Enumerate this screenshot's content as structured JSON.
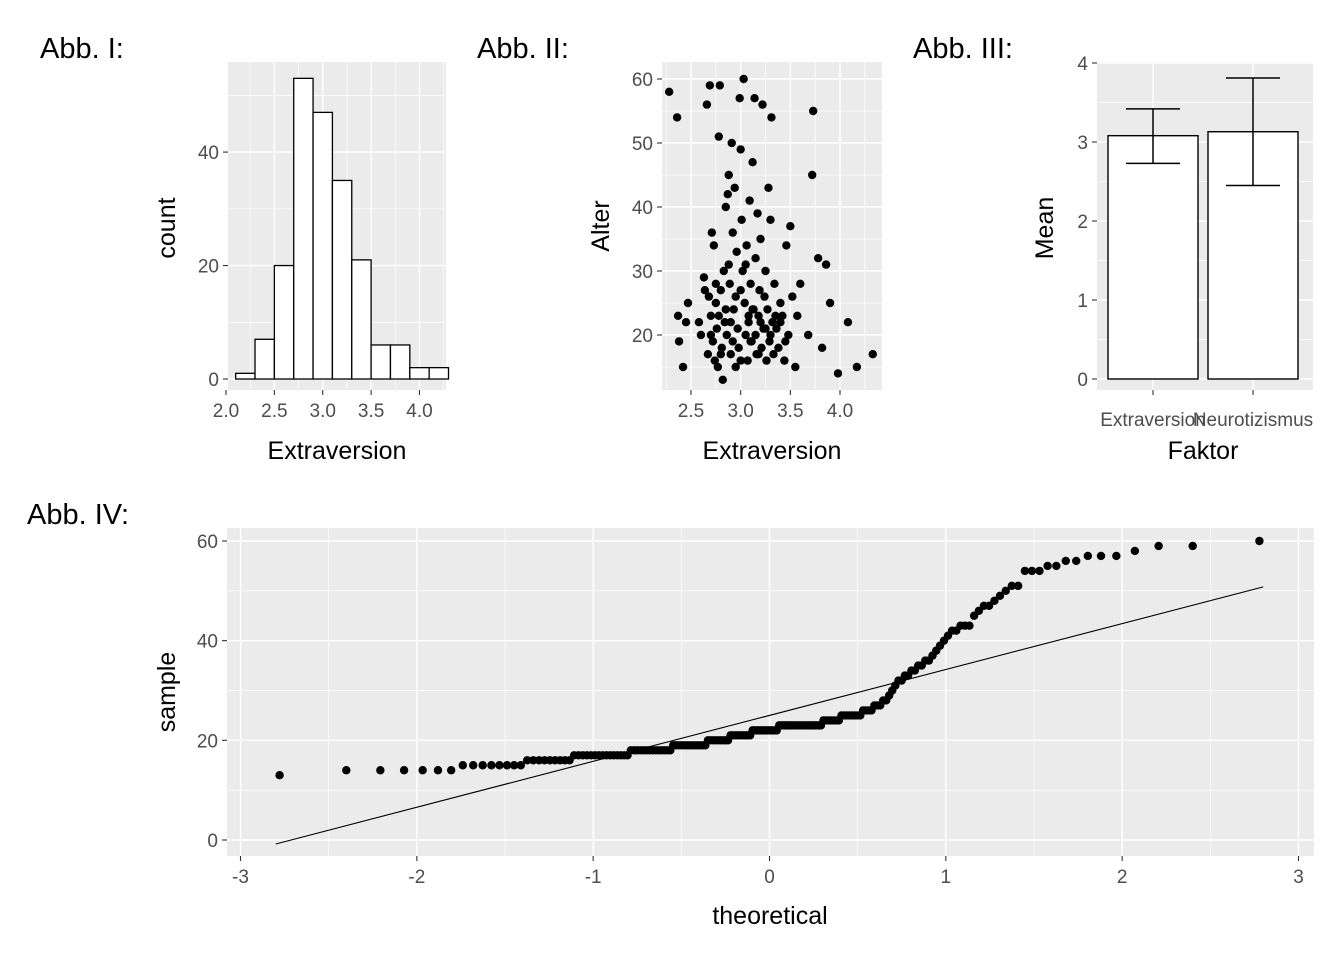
{
  "chart_data": [
    {
      "tag": "Abb. I:",
      "type": "bar",
      "subtype": "histogram",
      "xlabel": "Extraversion",
      "ylabel": "count",
      "xlim": [
        2.0,
        4.3
      ],
      "ylim": [
        0,
        55
      ],
      "xticks": [
        "2.0",
        "2.5",
        "3.0",
        "3.5",
        "4.0"
      ],
      "yticks": [
        "0",
        "20",
        "40"
      ],
      "bin_width": 0.2,
      "bin_starts": [
        2.1,
        2.3,
        2.5,
        2.7,
        2.9,
        3.1,
        3.3,
        3.5,
        3.7,
        3.9,
        4.1
      ],
      "values": [
        1,
        7,
        20,
        53,
        47,
        35,
        21,
        6,
        6,
        2,
        2
      ],
      "grid": true,
      "bar_fill": "#ffffff",
      "bar_edge": "#000000"
    },
    {
      "tag": "Abb. II:",
      "type": "scatter",
      "xlabel": "Extraversion",
      "ylabel": "Alter",
      "xlim": [
        2.2,
        4.4
      ],
      "ylim": [
        11,
        62
      ],
      "xticks": [
        "2.5",
        "3.0",
        "3.5",
        "4.0"
      ],
      "yticks": [
        "20",
        "30",
        "40",
        "50",
        "60"
      ],
      "grid": true,
      "point_color": "#000000",
      "points": [
        [
          2.28,
          58
        ],
        [
          2.36,
          54
        ],
        [
          2.37,
          23
        ],
        [
          2.38,
          19
        ],
        [
          2.42,
          15
        ],
        [
          2.45,
          22
        ],
        [
          2.47,
          25
        ],
        [
          2.58,
          22
        ],
        [
          2.6,
          20
        ],
        [
          2.63,
          29
        ],
        [
          2.64,
          27
        ],
        [
          2.66,
          56
        ],
        [
          2.67,
          17
        ],
        [
          2.68,
          26
        ],
        [
          2.69,
          59
        ],
        [
          2.7,
          23
        ],
        [
          2.71,
          36
        ],
        [
          2.72,
          19
        ],
        [
          2.73,
          34
        ],
        [
          2.74,
          16
        ],
        [
          2.75,
          25
        ],
        [
          2.76,
          21
        ],
        [
          2.77,
          15
        ],
        [
          2.78,
          51
        ],
        [
          2.79,
          59
        ],
        [
          2.8,
          27
        ],
        [
          2.81,
          18
        ],
        [
          2.82,
          13
        ],
        [
          2.83,
          30
        ],
        [
          2.84,
          22
        ],
        [
          2.85,
          40
        ],
        [
          2.86,
          20
        ],
        [
          2.87,
          42
        ],
        [
          2.88,
          45
        ],
        [
          2.89,
          28
        ],
        [
          2.9,
          17
        ],
        [
          2.91,
          50
        ],
        [
          2.92,
          36
        ],
        [
          2.93,
          24
        ],
        [
          2.94,
          43
        ],
        [
          2.95,
          15
        ],
        [
          2.96,
          33
        ],
        [
          2.97,
          21
        ],
        [
          2.98,
          18
        ],
        [
          2.99,
          57
        ],
        [
          3.0,
          49
        ],
        [
          3.01,
          38
        ],
        [
          3.02,
          30
        ],
        [
          3.03,
          60
        ],
        [
          3.04,
          25
        ],
        [
          3.05,
          20
        ],
        [
          3.06,
          34
        ],
        [
          3.07,
          16
        ],
        [
          3.08,
          22
        ],
        [
          3.09,
          41
        ],
        [
          3.1,
          28
        ],
        [
          3.11,
          19
        ],
        [
          3.12,
          47
        ],
        [
          3.13,
          24
        ],
        [
          3.14,
          57
        ],
        [
          3.15,
          32
        ],
        [
          3.16,
          17
        ],
        [
          3.17,
          39
        ],
        [
          3.18,
          23
        ],
        [
          3.19,
          27
        ],
        [
          3.2,
          35
        ],
        [
          3.21,
          18
        ],
        [
          3.22,
          56
        ],
        [
          3.23,
          21
        ],
        [
          3.24,
          26
        ],
        [
          3.25,
          30
        ],
        [
          3.26,
          16
        ],
        [
          3.27,
          24
        ],
        [
          3.28,
          43
        ],
        [
          3.29,
          19
        ],
        [
          3.3,
          38
        ],
        [
          3.31,
          54
        ],
        [
          3.32,
          22
        ],
        [
          3.33,
          17
        ],
        [
          3.34,
          28
        ],
        [
          3.36,
          21
        ],
        [
          3.38,
          18
        ],
        [
          3.4,
          25
        ],
        [
          3.42,
          23
        ],
        [
          3.44,
          16
        ],
        [
          3.46,
          34
        ],
        [
          3.48,
          20
        ],
        [
          3.5,
          37
        ],
        [
          3.52,
          26
        ],
        [
          3.55,
          15
        ],
        [
          3.57,
          23
        ],
        [
          3.6,
          28
        ],
        [
          3.68,
          20
        ],
        [
          3.72,
          45
        ],
        [
          3.73,
          55
        ],
        [
          3.78,
          32
        ],
        [
          3.82,
          18
        ],
        [
          3.86,
          31
        ],
        [
          3.9,
          25
        ],
        [
          3.98,
          14
        ],
        [
          4.08,
          22
        ],
        [
          4.17,
          15
        ],
        [
          4.33,
          17
        ],
        [
          2.88,
          31
        ],
        [
          2.95,
          26
        ],
        [
          3.08,
          23
        ],
        [
          3.15,
          20
        ],
        [
          3.2,
          22
        ],
        [
          3.35,
          23
        ],
        [
          2.75,
          28
        ],
        [
          2.85,
          24
        ],
        [
          3.0,
          27
        ],
        [
          3.05,
          31
        ],
        [
          3.12,
          24
        ],
        [
          2.92,
          19
        ],
        [
          3.18,
          17
        ],
        [
          3.25,
          21
        ],
        [
          3.45,
          19
        ],
        [
          2.8,
          17
        ],
        [
          2.7,
          20
        ],
        [
          3.0,
          16
        ],
        [
          3.1,
          19
        ],
        [
          2.9,
          22
        ],
        [
          3.3,
          20
        ],
        [
          3.4,
          22
        ],
        [
          2.78,
          23
        ]
      ]
    },
    {
      "tag": "Abb. III:",
      "type": "bar",
      "xlabel": "Faktor",
      "ylabel": "Mean",
      "categories": [
        "Extraversion",
        "Neurotizismus"
      ],
      "values": [
        3.08,
        3.13
      ],
      "error_low": [
        2.73,
        2.45
      ],
      "error_high": [
        3.42,
        3.81
      ],
      "ylim": [
        0,
        4
      ],
      "yticks": [
        "0",
        "1",
        "2",
        "3",
        "4"
      ],
      "grid": true,
      "bar_fill": "#ffffff",
      "bar_edge": "#000000"
    },
    {
      "tag": "Abb. IV:",
      "type": "scatter",
      "subtype": "qq-plot",
      "xlabel": "theoretical",
      "ylabel": "sample",
      "xlim": [
        -3,
        3
      ],
      "ylim": [
        -2,
        62
      ],
      "xticks": [
        "-3",
        "-2",
        "-1",
        "0",
        "1",
        "2",
        "3"
      ],
      "yticks": [
        "0",
        "20",
        "40",
        "60"
      ],
      "grid": true,
      "point_color": "#000000",
      "reference_line": {
        "x": [
          -2.8,
          2.8
        ],
        "y": [
          -0.8,
          50.8
        ]
      },
      "sample_sorted": [
        13,
        14,
        14,
        14,
        14,
        14,
        14,
        15,
        15,
        15,
        15,
        15,
        15,
        15,
        15,
        16,
        16,
        16,
        16,
        16,
        16,
        16,
        16,
        16,
        17,
        17,
        17,
        17,
        17,
        17,
        17,
        17,
        17,
        17,
        17,
        17,
        17,
        17,
        17,
        18,
        18,
        18,
        18,
        18,
        18,
        18,
        18,
        18,
        18,
        18,
        18,
        18,
        18,
        19,
        19,
        19,
        19,
        19,
        19,
        19,
        19,
        19,
        19,
        19,
        19,
        19,
        20,
        20,
        20,
        20,
        20,
        20,
        20,
        20,
        20,
        21,
        21,
        21,
        21,
        21,
        21,
        21,
        21,
        21,
        22,
        22,
        22,
        22,
        22,
        22,
        22,
        22,
        22,
        22,
        22,
        23,
        23,
        23,
        23,
        23,
        23,
        23,
        23,
        23,
        23,
        23,
        23,
        23,
        23,
        23,
        23,
        23,
        23,
        24,
        24,
        24,
        24,
        24,
        24,
        24,
        25,
        25,
        25,
        25,
        25,
        25,
        25,
        25,
        26,
        26,
        26,
        26,
        27,
        27,
        27,
        28,
        28,
        29,
        30,
        31,
        32,
        32,
        33,
        33,
        34,
        34,
        35,
        35,
        36,
        36,
        37,
        38,
        39,
        40,
        41,
        42,
        42,
        43,
        43,
        43,
        45,
        46,
        47,
        47,
        48,
        49,
        50,
        51,
        51,
        54,
        54,
        54,
        55,
        55,
        56,
        56,
        57,
        57,
        57,
        58,
        59,
        59,
        60
      ]
    }
  ]
}
